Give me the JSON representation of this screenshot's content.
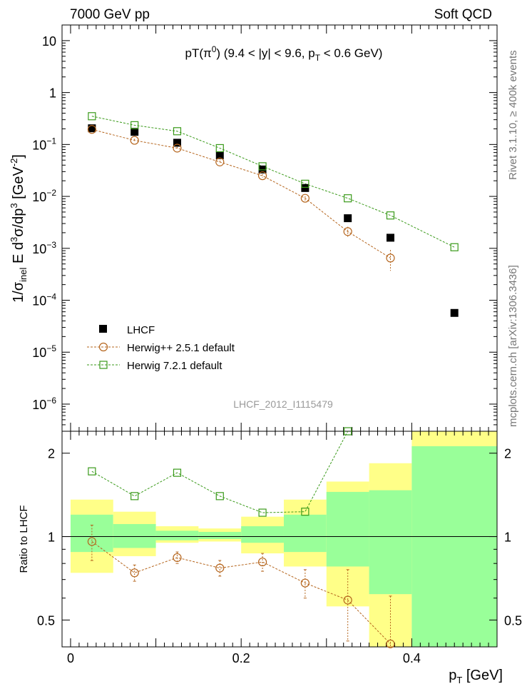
{
  "header": {
    "left": "7000 GeV pp",
    "right": "Soft QCD"
  },
  "side_labels": {
    "rivet": "Rivet 3.1.10, ≥ 400k events",
    "mcplots": "mcplots.cern.ch [arXiv:1306.3436]"
  },
  "analysis_tag": "LHCF_2012_I1115479",
  "colors": {
    "lhcf": "#000000",
    "herwigpp": "#b5651d",
    "herwig7": "#3a9a1a",
    "band_inner": "#99ff99",
    "band_outer": "#ffff88"
  },
  "chart_data": [
    {
      "type": "scatter",
      "panel": "main",
      "title": "pT(π⁰) (9.4 < |y| < 9.6, pT < 0.6 GeV)",
      "title_parts": {
        "a": "pT(π",
        "a_sup": "0",
        "b": ") (9.4 < |y| < 9.6, p",
        "b_sub": "T",
        "c": " < 0.6 GeV)"
      },
      "ylabel": "1/σinel E d³σ/dp³ [GeV⁻²]",
      "ylabel_parts": {
        "p1": "1/σ",
        "p1_sub": "inel",
        "p2": " E d",
        "p2_sup": "3",
        "p3": "σ/dp",
        "p3_sup": "3",
        "p4": " [GeV",
        "p4_sup": "-2",
        "p5": "]"
      },
      "yscale": "log",
      "ylim": [
        3e-07,
        20
      ],
      "xlim": [
        -0.01,
        0.5
      ],
      "y_tick_labels": [
        "10",
        "1",
        "10⁻¹",
        "10⁻²",
        "10⁻³",
        "10⁻⁴",
        "10⁻⁵",
        "10⁻⁶"
      ],
      "y_tick_values": [
        10,
        1,
        0.1,
        0.01,
        0.001,
        0.0001,
        1e-05,
        1e-06
      ],
      "y_tick_texts": [
        {
          "base": "10",
          "exp": ""
        },
        {
          "base": "1",
          "exp": ""
        },
        {
          "base": "10",
          "exp": "−1"
        },
        {
          "base": "10",
          "exp": "−2"
        },
        {
          "base": "10",
          "exp": "−3"
        },
        {
          "base": "10",
          "exp": "−4"
        },
        {
          "base": "10",
          "exp": "−5"
        },
        {
          "base": "10",
          "exp": "−6"
        }
      ],
      "legend_position": "bottom-left",
      "series": [
        {
          "name": "LHCF",
          "style": "filled-square",
          "x": [
            0.025,
            0.075,
            0.125,
            0.175,
            0.225,
            0.275,
            0.325,
            0.375,
            0.45
          ],
          "y": [
            0.205,
            0.175,
            0.108,
            0.062,
            0.033,
            0.0145,
            0.0038,
            0.0016,
            5.7e-05
          ]
        },
        {
          "name": "Herwig++ 2.5.1 default",
          "style": "open-circle-dashed",
          "x": [
            0.025,
            0.075,
            0.125,
            0.175,
            0.225,
            0.275,
            0.325,
            0.375
          ],
          "y": [
            0.195,
            0.12,
            0.085,
            0.046,
            0.025,
            0.0092,
            0.0021,
            0.00065
          ],
          "yerr": [
            0.02,
            0.008,
            0.005,
            0.003,
            0.002,
            0.0009,
            0.0005,
            0.00028
          ]
        },
        {
          "name": "Herwig 7.2.1 default",
          "style": "open-square-dashed",
          "x": [
            0.025,
            0.075,
            0.125,
            0.175,
            0.225,
            0.275,
            0.325,
            0.375,
            0.45
          ],
          "y": [
            0.35,
            0.235,
            0.18,
            0.085,
            0.038,
            0.0175,
            0.0092,
            0.0043,
            0.00105
          ]
        }
      ]
    },
    {
      "type": "line",
      "panel": "ratio",
      "ylabel": "Ratio to LHCF",
      "xlabel": "pT [GeV]",
      "xlabel_parts": {
        "a": "p",
        "a_sub": "T",
        "b": " [GeV]"
      },
      "yscale": "log",
      "ylim": [
        0.4,
        2.4
      ],
      "xlim": [
        -0.01,
        0.5
      ],
      "x_ticks": [
        0,
        0.2,
        0.4
      ],
      "x_tick_labels": [
        "0",
        "0.2",
        "0.4"
      ],
      "y_ticks": [
        0.5,
        1,
        2
      ],
      "y_tick_labels": [
        "0.5",
        "1",
        "2"
      ],
      "bands": {
        "bins": [
          [
            0.0,
            0.05
          ],
          [
            0.05,
            0.1
          ],
          [
            0.1,
            0.15
          ],
          [
            0.15,
            0.2
          ],
          [
            0.2,
            0.25
          ],
          [
            0.25,
            0.3
          ],
          [
            0.3,
            0.35
          ],
          [
            0.35,
            0.4
          ],
          [
            0.4,
            0.5
          ]
        ],
        "inner_low": [
          0.88,
          0.91,
          0.97,
          0.98,
          0.95,
          0.88,
          0.78,
          0.62,
          0.4
        ],
        "inner_high": [
          1.2,
          1.11,
          1.05,
          1.04,
          1.09,
          1.2,
          1.45,
          1.47,
          2.12
        ],
        "outer_low": [
          0.74,
          0.85,
          0.95,
          0.96,
          0.87,
          0.78,
          0.56,
          0.4,
          0.4
        ],
        "outer_high": [
          1.36,
          1.23,
          1.09,
          1.07,
          1.18,
          1.36,
          1.58,
          1.84,
          2.4
        ]
      },
      "series": [
        {
          "name": "Herwig++ 2.5.1 default",
          "x": [
            0.025,
            0.075,
            0.125,
            0.175,
            0.225,
            0.275,
            0.325,
            0.375
          ],
          "y": [
            0.96,
            0.74,
            0.84,
            0.77,
            0.81,
            0.68,
            0.59,
            0.41
          ],
          "yerr": [
            0.14,
            0.05,
            0.04,
            0.05,
            0.06,
            0.08,
            0.17,
            0.2
          ]
        },
        {
          "name": "Herwig 7.2.1 default",
          "x": [
            0.025,
            0.075,
            0.125,
            0.175,
            0.225,
            0.275,
            0.325
          ],
          "y": [
            1.72,
            1.4,
            1.7,
            1.4,
            1.22,
            1.23,
            2.4
          ]
        }
      ]
    }
  ]
}
